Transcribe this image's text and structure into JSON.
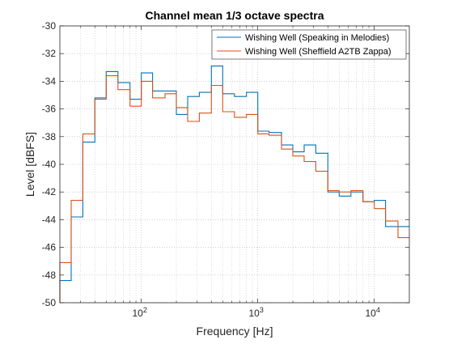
{
  "chart_data": {
    "type": "line",
    "subtype": "stairs",
    "title": "Channel mean 1/3 octave spectra",
    "xlabel": "Frequency [Hz]",
    "ylabel": "Level [dBFS]",
    "xscale": "log",
    "xlim": [
      20,
      20000
    ],
    "ylim": [
      -50,
      -30
    ],
    "grid": {
      "major": true,
      "minor": true
    },
    "legend": {
      "placement": "top-right"
    },
    "x_ticks": [
      {
        "value": 100,
        "base": "10",
        "exp": "2"
      },
      {
        "value": 1000,
        "base": "10",
        "exp": "3"
      },
      {
        "value": 10000,
        "base": "10",
        "exp": "4"
      }
    ],
    "y_ticks": [
      -30,
      -32,
      -34,
      -36,
      -38,
      -40,
      -42,
      -44,
      -46,
      -48,
      -50
    ],
    "y_tick_labels": [
      "-30",
      "-32",
      "-34",
      "-36",
      "-38",
      "-40",
      "-42",
      "-44",
      "-46",
      "-48",
      "-50"
    ],
    "band_edges": [
      20,
      25,
      31.5,
      40,
      50,
      63,
      80,
      100,
      125,
      160,
      200,
      250,
      315,
      400,
      500,
      630,
      800,
      1000,
      1250,
      1600,
      2000,
      2500,
      3150,
      4000,
      5000,
      6300,
      8000,
      10000,
      12500,
      16000,
      20000
    ],
    "series": [
      {
        "name": "Wishing Well (Speaking in Melodies)",
        "color": "#0072BD",
        "values": [
          -48.4,
          -43.8,
          -38.4,
          -35.2,
          -33.3,
          -34.1,
          -35.3,
          -33.4,
          -34.7,
          -34.7,
          -36.4,
          -35.1,
          -34.8,
          -32.9,
          -34.9,
          -35.1,
          -34.8,
          -37.6,
          -37.7,
          -38.6,
          -39.1,
          -38.6,
          -39.2,
          -42.0,
          -42.3,
          -42.0,
          -42.7,
          -42.6,
          -44.5,
          -44.5
        ]
      },
      {
        "name": "Wishing Well (Sheffield A2TB Zappa)",
        "color": "#D95319",
        "values": [
          -47.1,
          -42.6,
          -37.8,
          -35.3,
          -33.6,
          -34.6,
          -35.8,
          -34.0,
          -35.2,
          -34.9,
          -35.9,
          -36.9,
          -36.3,
          -34.3,
          -36.2,
          -36.6,
          -36.4,
          -37.8,
          -37.9,
          -38.9,
          -39.4,
          -39.8,
          -40.5,
          -41.9,
          -42.0,
          -41.9,
          -42.7,
          -43.2,
          -44.1,
          -45.3
        ]
      }
    ]
  }
}
